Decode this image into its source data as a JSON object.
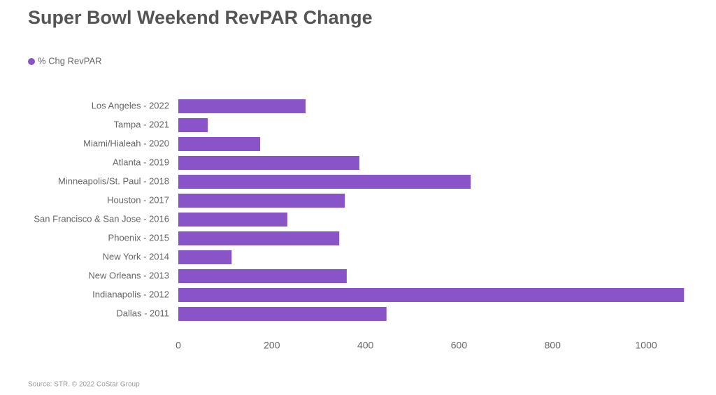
{
  "chart_data": {
    "type": "hbar",
    "title": "Super Bowl Weekend RevPAR Change",
    "categories": [
      "Los Angeles - 2022",
      "Tampa - 2021",
      "Miami/Hialeah - 2020",
      "Atlanta - 2019",
      "Minneapolis/St. Paul - 2018",
      "Houston - 2017",
      "San Francisco & San Jose - 2016",
      "Phoenix - 2015",
      "New York - 2014",
      "New Orleans - 2013",
      "Indianapolis - 2012",
      "Dallas - 2011"
    ],
    "series": [
      {
        "name": "% Chg RevPAR",
        "color": "#8854c8",
        "values": [
          272,
          63,
          175,
          387,
          625,
          356,
          233,
          344,
          114,
          360,
          1081,
          445
        ]
      }
    ],
    "xlim": [
      0,
      1100
    ],
    "xticks": [
      0,
      200,
      400,
      600,
      800,
      1000
    ],
    "source": "Source: STR. © 2022 CoStar Group"
  }
}
